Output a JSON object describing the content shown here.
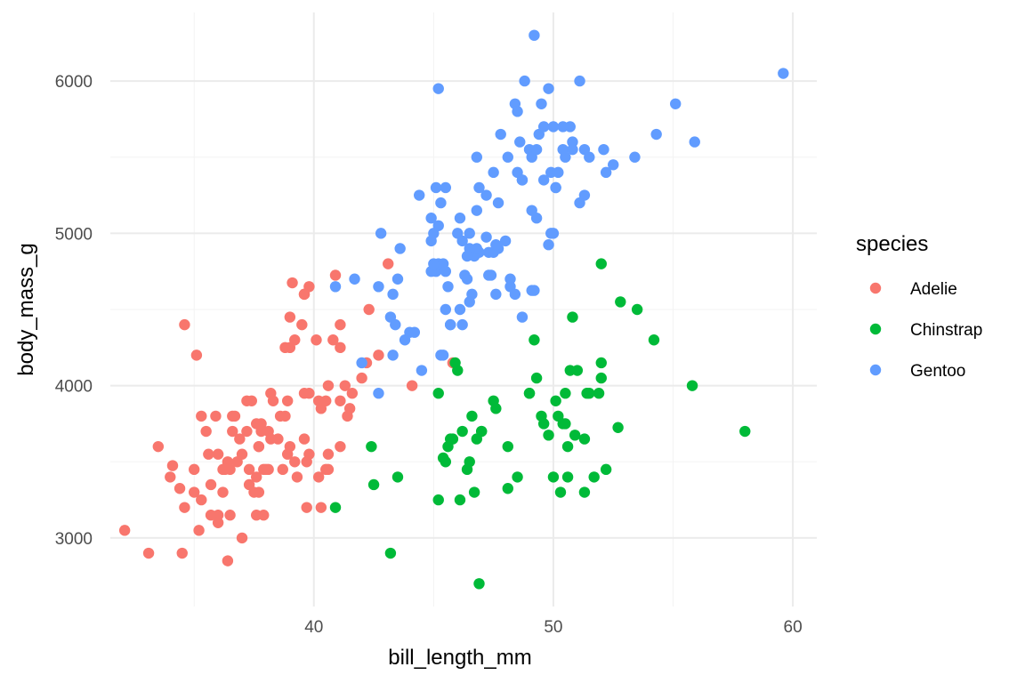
{
  "chart_data": {
    "type": "scatter",
    "xlabel": "bill_length_mm",
    "ylabel": "body_mass_g",
    "xlim": [
      31.5,
      61
    ],
    "ylim": [
      2550,
      6450
    ],
    "x_ticks": [
      40,
      50,
      60
    ],
    "y_ticks": [
      3000,
      4000,
      5000,
      6000
    ],
    "grid": true,
    "legend": {
      "title": "species",
      "position": "right"
    },
    "series": [
      {
        "name": "Adelie",
        "color": "#F8766D",
        "points": [
          [
            32.1,
            3050
          ],
          [
            33.1,
            2900
          ],
          [
            33.5,
            3600
          ],
          [
            34.0,
            3400
          ],
          [
            34.1,
            3475
          ],
          [
            34.4,
            3325
          ],
          [
            34.5,
            2900
          ],
          [
            34.6,
            4400
          ],
          [
            34.6,
            3200
          ],
          [
            35.0,
            3450
          ],
          [
            35.1,
            4200
          ],
          [
            35.2,
            3050
          ],
          [
            35.3,
            3800
          ],
          [
            35.5,
            3700
          ],
          [
            35.7,
            3350
          ],
          [
            35.9,
            3800
          ],
          [
            36.0,
            3150
          ],
          [
            36.0,
            3100
          ],
          [
            36.0,
            3550
          ],
          [
            36.2,
            3450
          ],
          [
            36.4,
            2850
          ],
          [
            36.5,
            3150
          ],
          [
            36.6,
            3700
          ],
          [
            36.7,
            3800
          ],
          [
            37.0,
            3000
          ],
          [
            37.2,
            3900
          ],
          [
            37.3,
            3350
          ],
          [
            37.5,
            3300
          ],
          [
            37.6,
            3750
          ],
          [
            37.7,
            3600
          ],
          [
            37.8,
            3700
          ],
          [
            37.9,
            3450
          ],
          [
            38.1,
            3700
          ],
          [
            38.2,
            3950
          ],
          [
            38.5,
            3650
          ],
          [
            38.8,
            3800
          ],
          [
            38.9,
            3550
          ],
          [
            39.0,
            4250
          ],
          [
            39.1,
            4675
          ],
          [
            39.2,
            3500
          ],
          [
            39.5,
            4400
          ],
          [
            39.6,
            4600
          ],
          [
            39.7,
            3500
          ],
          [
            39.8,
            4650
          ],
          [
            40.1,
            4300
          ],
          [
            40.3,
            3850
          ],
          [
            40.6,
            4000
          ],
          [
            40.8,
            4300
          ],
          [
            40.9,
            4725
          ],
          [
            41.1,
            4400
          ],
          [
            41.3,
            4000
          ],
          [
            41.5,
            3850
          ],
          [
            41.6,
            3950
          ],
          [
            42.0,
            4050
          ],
          [
            42.2,
            4150
          ],
          [
            42.3,
            4500
          ],
          [
            42.7,
            4200
          ],
          [
            43.1,
            4800
          ],
          [
            44.1,
            4000
          ],
          [
            45.8,
            4150
          ],
          [
            36.6,
            3800
          ],
          [
            37.8,
            3750
          ],
          [
            38.6,
            3800
          ],
          [
            39.3,
            3400
          ],
          [
            40.6,
            3550
          ],
          [
            41.1,
            3600
          ],
          [
            37.4,
            3900
          ],
          [
            39.6,
            3650
          ],
          [
            36.8,
            3500
          ],
          [
            38.0,
            3450
          ],
          [
            35.6,
            3550
          ],
          [
            36.9,
            3650
          ],
          [
            38.9,
            3900
          ],
          [
            40.2,
            3900
          ],
          [
            39.8,
            3550
          ],
          [
            37.7,
            3600
          ],
          [
            38.2,
            3650
          ],
          [
            37.3,
            3450
          ],
          [
            36.4,
            3500
          ],
          [
            39.7,
            3200
          ],
          [
            40.3,
            3200
          ],
          [
            38.1,
            3450
          ],
          [
            35.3,
            3250
          ],
          [
            37.9,
            3150
          ],
          [
            40.6,
            3450
          ],
          [
            39.0,
            3600
          ],
          [
            40.5,
            3450
          ],
          [
            36.5,
            3450
          ],
          [
            37.6,
            3400
          ],
          [
            38.3,
            3900
          ],
          [
            41.1,
            3900
          ],
          [
            37.0,
            3550
          ],
          [
            39.6,
            3950
          ],
          [
            35.7,
            3150
          ],
          [
            41.1,
            4250
          ],
          [
            36.2,
            3300
          ],
          [
            37.7,
            3300
          ],
          [
            39.0,
            4450
          ],
          [
            36.3,
            3450
          ],
          [
            38.7,
            3450
          ],
          [
            40.2,
            3400
          ],
          [
            39.2,
            4300
          ],
          [
            37.6,
            3150
          ],
          [
            41.4,
            3800
          ],
          [
            35.0,
            3300
          ],
          [
            38.8,
            4250
          ],
          [
            39.6,
            4600
          ],
          [
            40.5,
            3900
          ],
          [
            37.2,
            3700
          ],
          [
            39.8,
            3950
          ]
        ]
      },
      {
        "name": "Chinstrap",
        "color": "#00BA38",
        "points": [
          [
            40.9,
            3200
          ],
          [
            42.4,
            3600
          ],
          [
            42.5,
            3350
          ],
          [
            43.2,
            2900
          ],
          [
            43.5,
            3400
          ],
          [
            45.2,
            3950
          ],
          [
            45.2,
            3250
          ],
          [
            45.4,
            3525
          ],
          [
            45.5,
            3500
          ],
          [
            45.6,
            3600
          ],
          [
            45.7,
            3650
          ],
          [
            45.9,
            4150
          ],
          [
            46.1,
            3250
          ],
          [
            46.4,
            3450
          ],
          [
            46.5,
            3500
          ],
          [
            46.6,
            3800
          ],
          [
            46.8,
            3650
          ],
          [
            46.9,
            2700
          ],
          [
            47.0,
            3700
          ],
          [
            47.5,
            3900
          ],
          [
            47.6,
            3850
          ],
          [
            48.1,
            3325
          ],
          [
            48.5,
            3400
          ],
          [
            49.0,
            3950
          ],
          [
            49.2,
            4300
          ],
          [
            49.3,
            4050
          ],
          [
            49.5,
            3800
          ],
          [
            49.8,
            3675
          ],
          [
            50.0,
            3400
          ],
          [
            50.2,
            3800
          ],
          [
            50.3,
            3300
          ],
          [
            50.5,
            3750
          ],
          [
            50.6,
            3400
          ],
          [
            50.7,
            4100
          ],
          [
            50.8,
            4450
          ],
          [
            50.9,
            3675
          ],
          [
            51.0,
            4100
          ],
          [
            51.3,
            3650
          ],
          [
            51.4,
            3950
          ],
          [
            51.9,
            3950
          ],
          [
            52.0,
            4050
          ],
          [
            52.2,
            3450
          ],
          [
            52.7,
            3725
          ],
          [
            52.8,
            4550
          ],
          [
            53.5,
            4500
          ],
          [
            54.2,
            4300
          ],
          [
            55.8,
            4000
          ],
          [
            58.0,
            3700
          ],
          [
            52.0,
            4800
          ],
          [
            50.1,
            3900
          ],
          [
            49.0,
            3950
          ],
          [
            51.5,
            3950
          ],
          [
            50.5,
            3950
          ],
          [
            46.2,
            3700
          ],
          [
            46.7,
            3300
          ],
          [
            45.8,
            3650
          ],
          [
            51.7,
            3400
          ],
          [
            52.0,
            4150
          ],
          [
            49.6,
            3750
          ],
          [
            50.4,
            3750
          ],
          [
            47.0,
            3700
          ],
          [
            46.0,
            4100
          ],
          [
            48.1,
            3600
          ],
          [
            50.6,
            3600
          ],
          [
            51.3,
            3300
          ]
        ]
      },
      {
        "name": "Gentoo",
        "color": "#619CFF",
        "points": [
          [
            40.9,
            4650
          ],
          [
            41.7,
            4700
          ],
          [
            42.0,
            4150
          ],
          [
            42.7,
            3950
          ],
          [
            42.8,
            5000
          ],
          [
            43.2,
            4450
          ],
          [
            43.3,
            4200
          ],
          [
            43.4,
            4400
          ],
          [
            43.5,
            4700
          ],
          [
            43.6,
            4900
          ],
          [
            43.8,
            4300
          ],
          [
            44.0,
            4350
          ],
          [
            44.4,
            5250
          ],
          [
            44.5,
            4100
          ],
          [
            44.9,
            5100
          ],
          [
            45.0,
            5000
          ],
          [
            45.1,
            4750
          ],
          [
            45.2,
            4800
          ],
          [
            45.2,
            5950
          ],
          [
            45.3,
            4200
          ],
          [
            45.4,
            4800
          ],
          [
            45.5,
            4750
          ],
          [
            45.7,
            4400
          ],
          [
            46.0,
            5000
          ],
          [
            46.1,
            5100
          ],
          [
            46.2,
            4950
          ],
          [
            46.3,
            4725
          ],
          [
            46.4,
            4700
          ],
          [
            46.5,
            5000
          ],
          [
            46.6,
            4600
          ],
          [
            46.8,
            5150
          ],
          [
            46.9,
            4875
          ],
          [
            47.2,
            4975
          ],
          [
            47.3,
            4725
          ],
          [
            47.4,
            4725
          ],
          [
            47.5,
            5400
          ],
          [
            47.6,
            4600
          ],
          [
            47.8,
            5650
          ],
          [
            48.1,
            5500
          ],
          [
            48.2,
            4650
          ],
          [
            48.4,
            5850
          ],
          [
            48.5,
            5400
          ],
          [
            48.6,
            5600
          ],
          [
            48.7,
            5350
          ],
          [
            48.8,
            6000
          ],
          [
            49.0,
            5550
          ],
          [
            49.1,
            5500
          ],
          [
            49.2,
            6300
          ],
          [
            49.3,
            5550
          ],
          [
            49.4,
            5650
          ],
          [
            49.5,
            5850
          ],
          [
            49.6,
            5350
          ],
          [
            49.8,
            5950
          ],
          [
            49.9,
            5400
          ],
          [
            50.0,
            5700
          ],
          [
            50.2,
            5400
          ],
          [
            50.4,
            5550
          ],
          [
            50.5,
            5500
          ],
          [
            50.7,
            5700
          ],
          [
            50.8,
            5600
          ],
          [
            51.1,
            6000
          ],
          [
            51.3,
            5250
          ],
          [
            51.5,
            5500
          ],
          [
            52.1,
            5550
          ],
          [
            52.2,
            5400
          ],
          [
            52.5,
            5450
          ],
          [
            53.4,
            5500
          ],
          [
            54.3,
            5650
          ],
          [
            55.1,
            5850
          ],
          [
            55.9,
            5600
          ],
          [
            59.6,
            6050
          ],
          [
            46.5,
            4550
          ],
          [
            45.5,
            5300
          ],
          [
            47.2,
            5250
          ],
          [
            46.7,
            4850
          ],
          [
            47.7,
            4900
          ],
          [
            44.9,
            4750
          ],
          [
            45.6,
            4650
          ],
          [
            48.4,
            4600
          ],
          [
            49.9,
            5000
          ],
          [
            46.2,
            4400
          ],
          [
            45.3,
            5200
          ],
          [
            48.0,
            4950
          ],
          [
            43.3,
            4600
          ],
          [
            49.1,
            4625
          ],
          [
            46.1,
            4500
          ],
          [
            50.1,
            5300
          ],
          [
            47.3,
            4875
          ],
          [
            46.8,
            4900
          ],
          [
            45.1,
            5300
          ],
          [
            49.2,
            4625
          ],
          [
            45.7,
            4400
          ],
          [
            50.8,
            5550
          ],
          [
            47.5,
            4875
          ],
          [
            44.2,
            4350
          ],
          [
            42.7,
            4650
          ],
          [
            45.0,
            4800
          ],
          [
            48.7,
            4450
          ],
          [
            46.8,
            5500
          ],
          [
            50.0,
            5000
          ],
          [
            47.7,
            5200
          ],
          [
            45.4,
            4200
          ],
          [
            46.5,
            4900
          ],
          [
            45.5,
            4500
          ],
          [
            49.1,
            5150
          ],
          [
            48.5,
            5800
          ],
          [
            49.3,
            5100
          ],
          [
            46.9,
            5300
          ],
          [
            50.4,
            5700
          ],
          [
            50.1,
            5300
          ],
          [
            51.1,
            5200
          ],
          [
            48.2,
            4700
          ],
          [
            46.4,
            4850
          ],
          [
            49.8,
            4925
          ],
          [
            45.2,
            5050
          ],
          [
            51.3,
            5550
          ],
          [
            44.9,
            4950
          ],
          [
            47.6,
            4925
          ],
          [
            48.7,
            5350
          ],
          [
            49.6,
            5700
          ]
        ]
      }
    ]
  }
}
